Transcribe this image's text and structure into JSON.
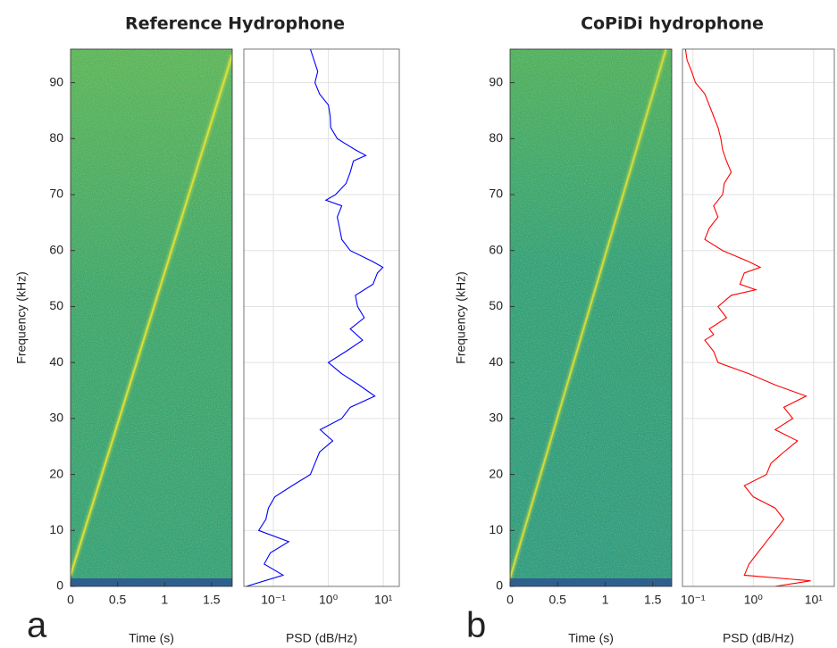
{
  "chart_data": [
    {
      "type": "spectrogram",
      "panel_label": "a",
      "title": "Reference Hydrophone",
      "xlabel": "Time (s)",
      "ylabel": "Frequency (kHz)",
      "xlim": [
        0,
        1.72
      ],
      "xticks": [
        0,
        0.5,
        1,
        1.5
      ],
      "ylim": [
        0,
        96
      ],
      "yticks": [
        0,
        10,
        20,
        30,
        40,
        50,
        60,
        70,
        80,
        90
      ],
      "line": {
        "x": [
          0,
          1.72
        ],
        "y": [
          2,
          95
        ],
        "color": "#d8e03a"
      }
    },
    {
      "type": "psd",
      "xlabel": "PSD (dB/Hz)",
      "xscale": "log",
      "grid": true,
      "color": "#0000ff",
      "xlim": [
        0.029,
        19.5
      ],
      "xticks": [
        {
          "value": 0.1,
          "label": "10⁻¹"
        },
        {
          "value": 1,
          "label": "10⁰"
        },
        {
          "value": 10,
          "label": "10¹"
        }
      ],
      "ylim": [
        0,
        96
      ],
      "yticks": [
        0,
        10,
        20,
        30,
        40,
        50,
        60,
        70,
        80,
        90
      ],
      "frequencies": [
        0,
        2,
        4,
        6,
        8,
        10,
        12,
        14,
        16,
        18,
        20,
        22,
        24,
        26,
        28,
        30,
        32,
        34,
        36,
        38,
        40,
        42,
        44,
        46,
        48,
        50,
        52,
        54,
        56,
        57,
        58,
        60,
        62,
        64,
        66,
        68,
        69,
        70,
        72,
        74,
        76,
        77,
        78,
        80,
        82,
        84,
        86,
        88,
        90,
        92,
        96
      ],
      "values": [
        0.032,
        0.15,
        0.068,
        0.088,
        0.19,
        0.054,
        0.073,
        0.081,
        0.106,
        0.22,
        0.47,
        0.57,
        0.69,
        1.2,
        0.71,
        1.75,
        2.5,
        7.0,
        3.6,
        1.75,
        1.0,
        2.1,
        4.2,
        2.5,
        4.5,
        3.4,
        3.1,
        6.5,
        7.8,
        9.8,
        6.5,
        2.5,
        1.75,
        1.6,
        1.45,
        1.75,
        0.9,
        1.35,
        2.1,
        2.5,
        2.85,
        4.8,
        3.1,
        1.45,
        1.1,
        1.08,
        1.0,
        0.69,
        0.57,
        0.64,
        0.47
      ]
    },
    {
      "type": "spectrogram",
      "panel_label": "b",
      "title": "CoPiDi hydrophone",
      "xlabel": "Time (s)",
      "ylabel": "Frequency (kHz)",
      "xlim": [
        0,
        1.7
      ],
      "xticks": [
        0,
        0.5,
        1,
        1.5
      ],
      "ylim": [
        0,
        96
      ],
      "yticks": [
        0,
        10,
        20,
        30,
        40,
        50,
        60,
        70,
        80,
        90
      ],
      "line": {
        "x": [
          0,
          1.64
        ],
        "y": [
          1.5,
          96
        ],
        "color": "#cfdc3e"
      }
    },
    {
      "type": "psd",
      "xlabel": "PSD (dB/Hz)",
      "xscale": "log",
      "grid": true,
      "color": "#ff0000",
      "xlim": [
        0.067,
        22
      ],
      "xticks": [
        {
          "value": 0.1,
          "label": "10⁻¹"
        },
        {
          "value": 1,
          "label": "10⁰"
        },
        {
          "value": 10,
          "label": "10¹"
        }
      ],
      "ylim": [
        0,
        96
      ],
      "yticks": [
        0,
        10,
        20,
        30,
        40,
        50,
        60,
        70,
        80,
        90
      ],
      "frequencies": [
        0,
        1,
        2,
        4,
        6,
        8,
        10,
        12,
        14,
        16,
        18,
        20,
        22,
        24,
        26,
        28,
        30,
        32,
        34,
        36,
        38,
        40,
        42,
        44,
        45,
        46,
        48,
        50,
        52,
        53,
        54,
        56,
        57,
        58,
        60,
        62,
        64,
        66,
        68,
        70,
        72,
        74,
        76,
        78,
        80,
        82,
        84,
        86,
        88,
        90,
        92,
        94,
        96
      ],
      "values": [
        2.3,
        8.9,
        0.71,
        0.85,
        1.18,
        1.65,
        2.3,
        3.2,
        2.3,
        1.0,
        0.71,
        1.65,
        1.96,
        3.2,
        5.4,
        2.3,
        4.5,
        3.2,
        7.5,
        2.3,
        0.85,
        0.26,
        0.22,
        0.157,
        0.22,
        0.186,
        0.36,
        0.26,
        0.43,
        1.1,
        0.6,
        0.71,
        1.3,
        0.85,
        0.31,
        0.157,
        0.186,
        0.26,
        0.22,
        0.31,
        0.33,
        0.43,
        0.36,
        0.31,
        0.29,
        0.26,
        0.22,
        0.186,
        0.157,
        0.11,
        0.095,
        0.08,
        0.075
      ]
    }
  ]
}
